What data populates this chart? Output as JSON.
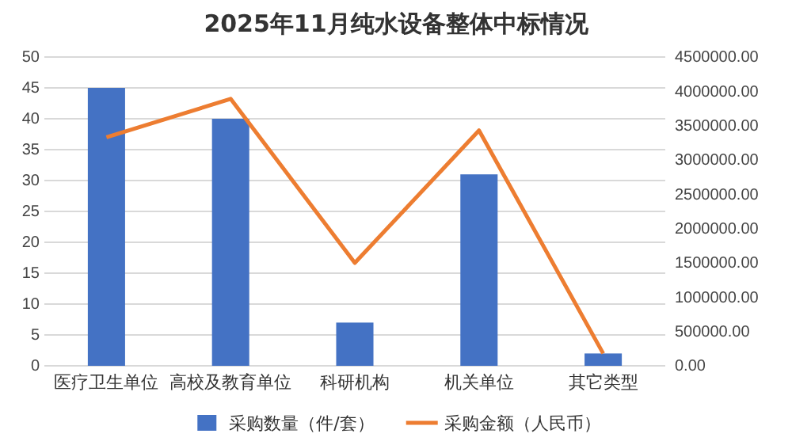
{
  "chart_data": {
    "type": "bar",
    "title": "2025年11月纯水设备整体中标情况",
    "categories": [
      "医疗卫生单位",
      "高校及教育单位",
      "科研机构",
      "机关单位",
      "其它类型"
    ],
    "series": [
      {
        "name": "采购数量（件/套）",
        "color": "#4472c4",
        "values": [
          45,
          40,
          7,
          31,
          2
        ]
      },
      {
        "name": "采购金额（人民币）",
        "color": "#ed7d31",
        "type": "line",
        "axis": "y2",
        "values": [
          3330000,
          3890000,
          1500000,
          3430000,
          180000
        ]
      }
    ],
    "ylim": [
      0,
      50
    ],
    "yticks": [
      0,
      5,
      10,
      15,
      20,
      25,
      30,
      35,
      40,
      45,
      50
    ],
    "y2lim": [
      0,
      4500000
    ],
    "y2ticks": [
      {
        "value": 0,
        "label": "0.00"
      },
      {
        "value": 500000,
        "label": "500000.00"
      },
      {
        "value": 1000000,
        "label": "1000000.00"
      },
      {
        "value": 1500000,
        "label": "1500000.00"
      },
      {
        "value": 2000000,
        "label": "2000000.00"
      },
      {
        "value": 2500000,
        "label": "2500000.00"
      },
      {
        "value": 3000000,
        "label": "3000000.00"
      },
      {
        "value": 3500000,
        "label": "3500000.00"
      },
      {
        "value": 4000000,
        "label": "4000000.00"
      },
      {
        "value": 4500000,
        "label": "4500000.00"
      }
    ],
    "grid": "y",
    "legend": "bottom",
    "marker": "none"
  }
}
